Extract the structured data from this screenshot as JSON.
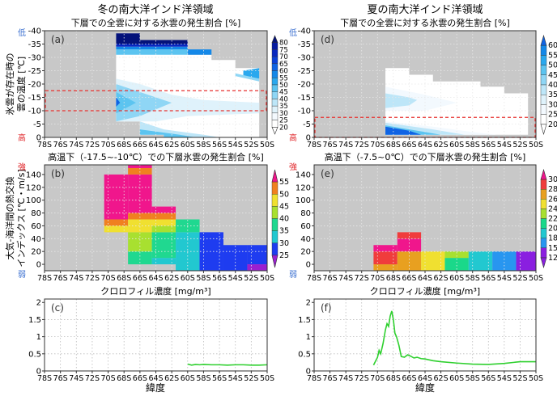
{
  "headers": {
    "left": "冬の南大洋インド洋領域",
    "right": "夏の南大洋インド洋領域",
    "xlabel": "緯度"
  },
  "ylabels": {
    "cloud": [
      "氷雲が存在時の",
      "雲の温度 [℃]"
    ],
    "flux": [
      "大気-海洋間の熱交換",
      "インデックス [℃・m/s]"
    ],
    "low": "低",
    "high": "高",
    "strong": "強",
    "weak": "弱"
  },
  "xticks": [
    "78S",
    "76S",
    "74S",
    "72S",
    "70S",
    "68S",
    "66S",
    "64S",
    "62S",
    "60S",
    "58S",
    "56S",
    "54S",
    "52S",
    "50S"
  ],
  "colors": {
    "missing": "#c8c8c8",
    "box": "#e8312f",
    "line": "#2fd02f",
    "low": "#3a6fd0",
    "high": "#e0262a"
  },
  "chart_data": [
    {
      "id": "a",
      "type": "heatmap",
      "label": "(a)",
      "title": "下層での全雲に対する氷雲の発生割合 [%]",
      "xlim": [
        -78,
        -50
      ],
      "ylim": [
        -40,
        0
      ],
      "yticks": [
        "-40",
        "-35",
        "-30",
        "-25",
        "-20",
        "-15",
        "-10",
        "-5",
        "0"
      ],
      "scale": "blue",
      "levels": [
        80,
        75,
        70,
        65,
        60,
        55,
        50,
        45,
        40,
        35,
        30,
        25,
        20
      ],
      "box": [
        -17.5,
        -10
      ],
      "regions": [
        {
          "v": 22,
          "poly": [
            [
              -69,
              -39
            ],
            [
              -66,
              -39
            ],
            [
              -66,
              -36.5
            ],
            [
              -60,
              -36.5
            ],
            [
              -60,
              -31
            ],
            [
              -57,
              -31
            ],
            [
              -57,
              -29
            ],
            [
              -54,
              -29
            ],
            [
              -54,
              -26
            ],
            [
              -51,
              -26
            ],
            [
              -51,
              0
            ],
            [
              -63,
              0
            ],
            [
              -63,
              -1
            ],
            [
              -66,
              -1
            ],
            [
              -66,
              -6
            ],
            [
              -69,
              -6
            ]
          ]
        },
        {
          "v": 32,
          "poly": [
            [
              -69,
              -22
            ],
            [
              -66,
              -20
            ],
            [
              -62,
              -16
            ],
            [
              -58,
              -14
            ],
            [
              -51,
              -13
            ],
            [
              -51,
              -9
            ],
            [
              -60,
              -8
            ],
            [
              -64,
              -6
            ],
            [
              -66,
              -6
            ],
            [
              -69,
              -6
            ]
          ]
        },
        {
          "v": 42,
          "poly": [
            [
              -69,
              -20
            ],
            [
              -66,
              -17
            ],
            [
              -62,
              -13
            ],
            [
              -66,
              -8
            ],
            [
              -69,
              -6
            ]
          ]
        },
        {
          "v": 48,
          "poly": [
            [
              -69,
              -17
            ],
            [
              -66.5,
              -13
            ],
            [
              -69,
              -9
            ]
          ]
        },
        {
          "v": 62,
          "poly": [
            [
              -69,
              -15
            ],
            [
              -68.5,
              -13
            ],
            [
              -69,
              -11.5
            ]
          ]
        },
        {
          "v": 38,
          "poly": [
            [
              -66,
              -6
            ],
            [
              -63,
              -3
            ],
            [
              -58,
              -1
            ],
            [
              -56,
              0
            ],
            [
              -63,
              0
            ],
            [
              -63,
              -1
            ],
            [
              -66,
              -1
            ]
          ]
        },
        {
          "v": 45,
          "poly": [
            [
              -66,
              -3
            ],
            [
              -61,
              -1
            ],
            [
              -59,
              0
            ],
            [
              -63,
              0
            ],
            [
              -63,
              -1
            ],
            [
              -66,
              -1
            ]
          ]
        },
        {
          "v": 45,
          "poly": [
            [
              -69,
              -31
            ],
            [
              -60,
              -31
            ],
            [
              -60,
              -33
            ],
            [
              -69,
              -33
            ]
          ]
        },
        {
          "v": 58,
          "poly": [
            [
              -69,
              -33
            ],
            [
              -57,
              -33
            ],
            [
              -57,
              -31
            ],
            [
              -60,
              -31
            ],
            [
              -60,
              -34
            ],
            [
              -69,
              -34
            ]
          ]
        },
        {
          "v": 70,
          "poly": [
            [
              -69,
              -34
            ],
            [
              -60,
              -34
            ],
            [
              -60,
              -35
            ],
            [
              -69,
              -35
            ]
          ]
        },
        {
          "v": 80,
          "poly": [
            [
              -69,
              -39
            ],
            [
              -66,
              -39
            ],
            [
              -66,
              -36.5
            ],
            [
              -60,
              -36.5
            ],
            [
              -60,
              -35
            ],
            [
              -69,
              -35
            ]
          ]
        },
        {
          "v": 52,
          "poly": [
            [
              -53,
              -25
            ],
            [
              -51,
              -26
            ],
            [
              -51,
              -22
            ],
            [
              -53,
              -23
            ]
          ]
        },
        {
          "v": 40,
          "poly": [
            [
              -54,
              -24
            ],
            [
              -51,
              -22
            ],
            [
              -51,
              -21
            ],
            [
              -54,
              -23
            ]
          ]
        }
      ]
    },
    {
      "id": "b",
      "type": "heatmap",
      "label": "(b)",
      "title": "高温下（-17.5~-10℃）での下層氷雲の発生割合 [%]",
      "xlim": [
        -78,
        -50
      ],
      "ylim": [
        -10,
        155
      ],
      "yticks": [
        "140",
        "120",
        "100",
        "80",
        "60",
        "40",
        "20",
        "0"
      ],
      "scale": "rainbowB",
      "levels": [
        55,
        50,
        45,
        40,
        35,
        30,
        25
      ],
      "cells": [
        [
          -70.5,
          -67.5,
          50,
          60,
          46
        ],
        [
          -70.5,
          -67.5,
          60,
          70,
          52
        ],
        [
          -70.5,
          -67.5,
          70,
          140,
          57
        ],
        [
          -67.5,
          -64.5,
          0,
          20,
          37
        ],
        [
          -67.5,
          -64.5,
          20,
          50,
          42
        ],
        [
          -67.5,
          -64.5,
          50,
          70,
          46
        ],
        [
          -67.5,
          -64.5,
          70,
          80,
          52
        ],
        [
          -67.5,
          -64.5,
          80,
          140,
          57
        ],
        [
          -67.5,
          -64.5,
          140,
          150,
          52
        ],
        [
          -67.5,
          -64.5,
          150,
          160,
          57
        ],
        [
          -64.5,
          -61.5,
          0,
          10,
          32
        ],
        [
          -64.5,
          -61.5,
          10,
          50,
          37
        ],
        [
          -64.5,
          -61.5,
          50,
          60,
          42
        ],
        [
          -64.5,
          -61.5,
          60,
          70,
          46
        ],
        [
          -64.5,
          -61.5,
          70,
          80,
          52
        ],
        [
          -64.5,
          -61.5,
          80,
          90,
          57
        ],
        [
          -61.5,
          -58.5,
          -10,
          50,
          32
        ],
        [
          -61.5,
          -58.5,
          50,
          70,
          37
        ],
        [
          -58.5,
          -55.5,
          -10,
          50,
          27
        ],
        [
          -55.5,
          -52.5,
          -10,
          30,
          27
        ],
        [
          -52.5,
          -50,
          0,
          30,
          27
        ],
        [
          -52.5,
          -50,
          -10,
          0,
          22
        ]
      ]
    },
    {
      "id": "c",
      "type": "line",
      "label": "(c)",
      "title": "クロロフィル濃度 [mg/m³]",
      "xlim": [
        -78,
        -50
      ],
      "ylim": [
        0,
        2.1
      ],
      "yticks": [
        "2",
        "1.5",
        "1",
        "0.5",
        "0"
      ],
      "x": [
        -60,
        -59.5,
        -59,
        -58.5,
        -58,
        -57,
        -56,
        -55,
        -54,
        -53,
        -52,
        -51,
        -50
      ],
      "y": [
        0.2,
        0.17,
        0.19,
        0.18,
        0.19,
        0.18,
        0.18,
        0.17,
        0.18,
        0.18,
        0.17,
        0.17,
        0.18
      ]
    },
    {
      "id": "d",
      "type": "heatmap",
      "label": "(d)",
      "title": "下層での全雲に対する氷雲の発生割合 [%]",
      "xlim": [
        -78,
        -50
      ],
      "ylim": [
        -40,
        0
      ],
      "yticks": [
        "-40",
        "-35",
        "-30",
        "-25",
        "-20",
        "-15",
        "-10",
        "-5",
        "0"
      ],
      "scale": "blue",
      "levels": [
        60,
        55,
        50,
        45,
        40,
        35,
        30,
        25,
        20
      ],
      "box": [
        -7.5,
        0
      ],
      "regions": [
        {
          "v": 18,
          "poly": [
            [
              -69,
              -26
            ],
            [
              -66,
              -26
            ],
            [
              -66,
              -23.5
            ],
            [
              -63,
              -23.5
            ],
            [
              -63,
              -21
            ],
            [
              -57,
              -21
            ],
            [
              -57,
              -19
            ],
            [
              -54,
              -19
            ],
            [
              -54,
              -16.5
            ],
            [
              -51,
              -16.5
            ],
            [
              -51,
              -1
            ],
            [
              -69,
              -1
            ]
          ]
        },
        {
          "v": 27,
          "poly": [
            [
              -69,
              -19
            ],
            [
              -64,
              -16
            ],
            [
              -60,
              -13
            ],
            [
              -64,
              -10
            ],
            [
              -69,
              -10
            ]
          ]
        },
        {
          "v": 36,
          "poly": [
            [
              -69,
              -16.5
            ],
            [
              -66,
              -15
            ],
            [
              -65,
              -14
            ],
            [
              -66,
              -12
            ],
            [
              -69,
              -11
            ]
          ]
        },
        {
          "v": 27,
          "poly": [
            [
              -69,
              -6
            ],
            [
              -63,
              -4
            ],
            [
              -58,
              -2
            ],
            [
              -55,
              -1
            ],
            [
              -69,
              -1
            ]
          ]
        },
        {
          "v": 38,
          "poly": [
            [
              -69,
              -5.5
            ],
            [
              -63,
              -3
            ],
            [
              -59,
              -1
            ],
            [
              -69,
              -1
            ]
          ]
        },
        {
          "v": 48,
          "poly": [
            [
              -69,
              -4.5
            ],
            [
              -64,
              -2
            ],
            [
              -62,
              -1
            ],
            [
              -69,
              -1
            ]
          ]
        },
        {
          "v": 62,
          "poly": [
            [
              -69,
              -4
            ],
            [
              -66,
              -2.5
            ],
            [
              -64.5,
              -1
            ],
            [
              -69,
              -1
            ]
          ]
        }
      ]
    },
    {
      "id": "e",
      "type": "heatmap",
      "label": "(e)",
      "title": "高温下（-7.5~0℃）での下層氷雲の発生割合 [%]",
      "xlim": [
        -78,
        -50
      ],
      "ylim": [
        -10,
        155
      ],
      "yticks": [
        "140",
        "120",
        "100",
        "80",
        "60",
        "40",
        "20",
        "0"
      ],
      "scale": "rainbowE",
      "levels": [
        30,
        28,
        26,
        24,
        22,
        20,
        18,
        15,
        12
      ],
      "cells": [
        [
          -70.5,
          -67.5,
          -10,
          0,
          27
        ],
        [
          -70.5,
          -67.5,
          0,
          20,
          29
        ],
        [
          -70.5,
          -67.5,
          20,
          30,
          31
        ],
        [
          -67.5,
          -64.5,
          -10,
          20,
          27
        ],
        [
          -67.5,
          -64.5,
          20,
          40,
          31
        ],
        [
          -67.5,
          -64.5,
          40,
          50,
          29
        ],
        [
          -64.5,
          -61.5,
          -10,
          20,
          25
        ],
        [
          -61.5,
          -58.5,
          -10,
          10,
          21
        ],
        [
          -61.5,
          -58.5,
          10,
          20,
          23
        ],
        [
          -58.5,
          -55.5,
          -10,
          20,
          19
        ],
        [
          -55.5,
          -52.5,
          -10,
          20,
          16
        ],
        [
          -52.5,
          -50,
          -10,
          20,
          13
        ]
      ]
    },
    {
      "id": "f",
      "type": "line",
      "label": "(f)",
      "title": "クロロフィル濃度 [mg/m³]",
      "xlim": [
        -78,
        -50
      ],
      "ylim": [
        0,
        2.1
      ],
      "yticks": [
        "2",
        "1.5",
        "1",
        "0.5",
        "0"
      ],
      "x": [
        -70.5,
        -70,
        -69.8,
        -69.6,
        -69.3,
        -69,
        -68.8,
        -68.6,
        -68.4,
        -68.2,
        -68,
        -67.8,
        -67.6,
        -67.3,
        -67,
        -66.6,
        -66.2,
        -65.8,
        -65.4,
        -65,
        -64.5,
        -64,
        -63,
        -62,
        -60,
        -58,
        -56,
        -54,
        -52,
        -50
      ],
      "y": [
        0.17,
        0.4,
        0.6,
        0.5,
        0.8,
        1.2,
        1.38,
        1.3,
        1.6,
        1.75,
        1.5,
        1.1,
        1.0,
        0.75,
        0.42,
        0.4,
        0.47,
        0.43,
        0.38,
        0.4,
        0.36,
        0.35,
        0.3,
        0.27,
        0.23,
        0.2,
        0.19,
        0.22,
        0.27,
        0.27
      ]
    }
  ]
}
